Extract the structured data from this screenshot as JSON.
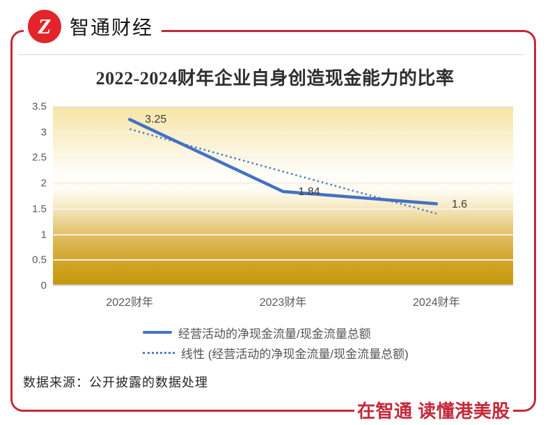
{
  "brand": {
    "name": "智通财经",
    "logo_glyph": "Z"
  },
  "chart_data": {
    "type": "line",
    "title": "2022-2024财年企业自身创造现金能力的比率",
    "categories": [
      "2022财年",
      "2023财年",
      "2024财年"
    ],
    "series": [
      {
        "name": "经营活动的净现金流量/现金流量总额",
        "values": [
          3.25,
          1.84,
          1.6
        ],
        "labels": [
          "3.25",
          "1.84",
          "1.6"
        ],
        "style": "solid",
        "color": "#4472C4"
      },
      {
        "name": "线性 (经营活动的净现金流量/现金流量总额)",
        "values": [
          3.06,
          2.23,
          1.41
        ],
        "style": "dotted",
        "color": "#4E7EC1"
      }
    ],
    "ylim": [
      0,
      3.5
    ],
    "ytick_step": 0.5,
    "yticks": [
      "3.5",
      "3",
      "2.5",
      "2",
      "1.5",
      "1",
      "0.5",
      "0"
    ],
    "grid": true,
    "legend_position": "bottom",
    "plot_background": "vertical gradient light gold to white to deep gold"
  },
  "legend": {
    "items": [
      {
        "label": "经营活动的净现金流量/现金流量总额",
        "style": "solid"
      },
      {
        "label": "线性 (经营活动的净现金流量/现金流量总额)",
        "style": "dotted"
      }
    ]
  },
  "source_note": "数据来源：公开披露的数据处理",
  "tagline": "在智通 读懂港美股",
  "colors": {
    "brand_red": "#C5293A",
    "logo_red": "#E3242B",
    "line_blue": "#4472C4",
    "trend_blue": "#4E7EC1"
  }
}
